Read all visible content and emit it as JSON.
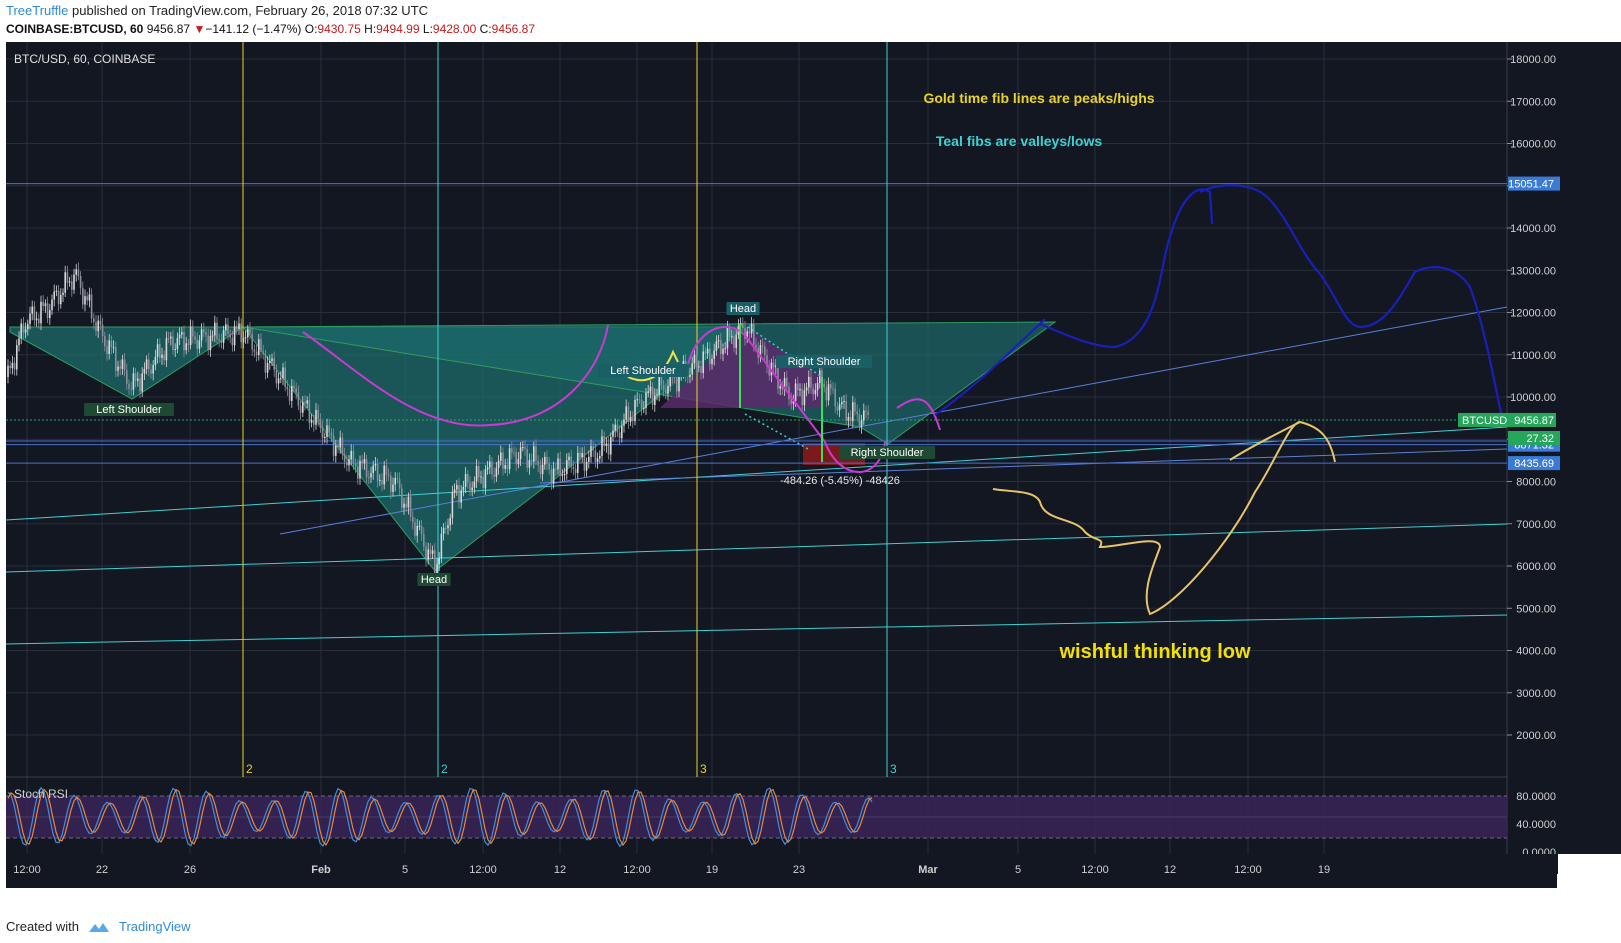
{
  "header": {
    "author": "TreeTruffle",
    "published_text": "published on TradingView.com, February 26, 2018 07:32 UTC",
    "symbol": "COINBASE:BTCUSD, 60",
    "last": "9456.87",
    "change_arrow": "▼",
    "change": "−141.12 (−1.47%)",
    "o_label": "O:",
    "o_val": "9430.75",
    "h_label": "H:",
    "h_val": "9494.99",
    "l_label": "L:",
    "l_val": "9428.00",
    "c_label": "C:",
    "c_val": "9456.87"
  },
  "footer": {
    "created_with": "Created with",
    "brand": "TradingView"
  },
  "colors": {
    "background": "#131722",
    "grid": "#2a2e39",
    "gold": "#e8d32a",
    "teal": "#3fd0d0",
    "magenta": "#c93bd0",
    "blue_drawing": "#1a1fb8",
    "pattern_fill": "#1d6b6b",
    "price_tag": "#26a65b",
    "blue_tag": "#3a7bd5",
    "rsi_fill": "#3a2358"
  },
  "chart_data": {
    "type": "candlestick-annotated",
    "title": "BTC/USD, 60, COINBASE",
    "ylim": [
      1000,
      18500
    ],
    "y_ticks": [
      "18000.00",
      "17000.00",
      "16000.00",
      "15000.00",
      "14000.00",
      "13000.00",
      "12000.00",
      "11000.00",
      "10000.00",
      "9000.00",
      "8000.00",
      "7000.00",
      "6000.00",
      "5000.00",
      "4000.00",
      "3000.00",
      "2000.00"
    ],
    "x_ticks": [
      "12:00",
      "22",
      "26",
      "Feb",
      "5",
      "12:00",
      "12",
      "12:00",
      "19",
      "23",
      "Mar",
      "5",
      "12:00",
      "12",
      "12:00",
      "19"
    ],
    "last_price_label": "BTCUSD",
    "last_price": "9456.87",
    "horizontal_levels": [
      {
        "label": "15051.47",
        "value": 15051.47
      },
      {
        "label": "8871.32",
        "value": 8871.32
      },
      {
        "label": "8435.69",
        "value": 8435.69
      }
    ],
    "partial_level_label": "27.32",
    "time_fib_labels": [
      {
        "label": "2",
        "kind": "gold"
      },
      {
        "label": "2",
        "kind": "teal"
      },
      {
        "label": "3",
        "kind": "gold"
      },
      {
        "label": "3",
        "kind": "teal"
      }
    ],
    "pattern_labels": {
      "left_shoulder_1": "Left Shoulder",
      "head_1": "Head",
      "left_shoulder_2": "Left Shoulder",
      "head_2": "Head",
      "right_shoulder_top": "Right Shoulder",
      "right_shoulder_bottom": "Right Shoulder"
    },
    "measure_label": "-484.26 (-5.45%) -48426",
    "annotations": {
      "gold_note": "Gold time fib lines are peaks/highs",
      "teal_note": "Teal fibs are valleys/lows",
      "wishful": "wishful thinking low"
    },
    "indicator": {
      "name": "Stoch RSI",
      "y_ticks": [
        "80.0000",
        "40.0000",
        "0.0000"
      ],
      "band": [
        20,
        80
      ]
    }
  }
}
